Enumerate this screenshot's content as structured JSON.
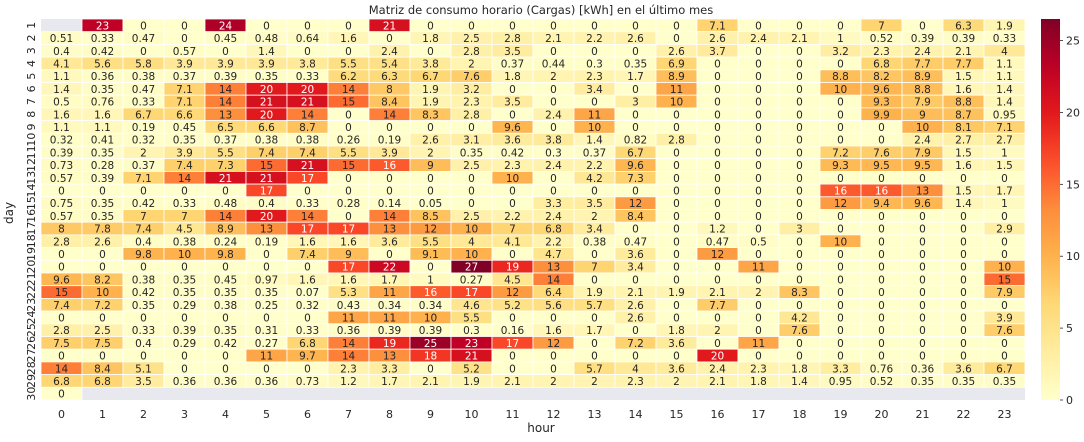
{
  "chart_data": {
    "type": "heatmap",
    "title": "Matriz de consumo horario (Cargas) [kWh] en el último mes",
    "xlabel": "hour",
    "ylabel": "day",
    "x_ticks": [
      "0",
      "1",
      "2",
      "3",
      "4",
      "5",
      "6",
      "7",
      "8",
      "9",
      "10",
      "11",
      "12",
      "13",
      "14",
      "15",
      "16",
      "17",
      "18",
      "19",
      "20",
      "21",
      "22",
      "23"
    ],
    "y_ticks": [
      "1",
      "2",
      "3",
      "4",
      "5",
      "6",
      "7",
      "8",
      "9",
      "10",
      "11",
      "12",
      "13",
      "14",
      "15",
      "16",
      "17",
      "18",
      "19",
      "20",
      "21",
      "22",
      "23",
      "24",
      "25",
      "26",
      "27",
      "28",
      "29",
      "30"
    ],
    "colorbar": {
      "min": 0,
      "max": 26.5,
      "ticks": [
        0,
        5,
        10,
        15,
        20,
        25
      ]
    },
    "missing_color": "#e8e9ef",
    "values": [
      [
        null,
        23,
        0,
        0,
        24,
        0,
        0,
        0,
        21,
        0,
        0,
        0,
        0,
        0,
        0,
        0,
        7.1,
        0,
        0,
        0,
        7,
        0,
        6.3,
        1.9
      ],
      [
        0.51,
        0.33,
        0.47,
        0,
        0.45,
        0.48,
        0.64,
        1.6,
        0,
        1.8,
        2.5,
        2.8,
        2.1,
        2.2,
        2.6,
        0,
        2.6,
        2.4,
        2.1,
        1,
        0.52,
        0.39,
        0.39,
        0.33
      ],
      [
        0.4,
        0.42,
        0,
        0.57,
        0,
        1.4,
        0,
        0,
        2.4,
        0,
        2.8,
        3.5,
        0,
        0,
        0,
        2.6,
        3.7,
        0,
        0,
        3.2,
        2.3,
        2.4,
        2.1,
        4
      ],
      [
        4.1,
        5.6,
        5.8,
        3.9,
        3.9,
        3.9,
        3.8,
        5.5,
        5.4,
        3.8,
        2,
        0.37,
        0.44,
        0.3,
        0.35,
        6.9,
        0,
        0,
        0,
        0,
        6.8,
        7.7,
        7.7,
        1.1
      ],
      [
        1.1,
        0.36,
        0.38,
        0.37,
        0.39,
        0.35,
        0.33,
        6.2,
        6.3,
        6.7,
        7.6,
        1.8,
        2,
        2.3,
        1.7,
        8.9,
        0,
        0,
        0,
        8.8,
        8.2,
        8.9,
        1.5,
        1.1
      ],
      [
        1.4,
        0.35,
        0.47,
        7.1,
        14,
        20,
        20,
        14,
        8,
        1.9,
        3.2,
        0,
        0,
        3.4,
        0,
        11,
        0,
        0,
        0,
        10,
        9.6,
        8.8,
        1.6,
        1.4
      ],
      [
        0.5,
        0.76,
        0.33,
        7.1,
        14,
        21,
        21,
        15,
        8.4,
        1.9,
        2.3,
        3.5,
        0,
        0,
        3,
        10,
        0,
        0,
        0,
        0,
        9.3,
        7.9,
        8.8,
        1.4
      ],
      [
        1.6,
        1.6,
        6.7,
        6.6,
        13,
        20,
        14,
        0,
        14,
        8.3,
        2.8,
        0,
        2.4,
        11,
        0,
        0,
        0,
        0,
        0,
        0,
        9.9,
        9,
        8.7,
        0.95
      ],
      [
        1.1,
        1.1,
        0.19,
        0.45,
        6.5,
        6.6,
        8.7,
        0,
        0,
        0,
        0,
        9.6,
        0,
        10,
        0,
        0,
        0,
        0,
        0,
        0,
        0,
        10,
        8.1,
        7.1
      ],
      [
        0.32,
        0.41,
        0.32,
        0.35,
        0.37,
        0.38,
        0.38,
        0.26,
        0.19,
        2.6,
        3.1,
        3.6,
        3.8,
        1.4,
        0.82,
        2.8,
        0,
        0,
        0,
        0,
        0,
        2.4,
        2.7,
        2.7
      ],
      [
        0.39,
        0.35,
        2,
        3.9,
        5.5,
        7.4,
        7.4,
        5.5,
        3.9,
        2,
        0.35,
        0.42,
        0.3,
        0.37,
        6.7,
        0,
        0,
        0,
        0,
        7.2,
        7.6,
        7.9,
        1.5,
        1
      ],
      [
        0.73,
        0.28,
        0.37,
        7.4,
        7.3,
        15,
        21,
        15,
        16,
        9,
        2.5,
        2.3,
        2.4,
        2.2,
        9.6,
        0,
        0,
        0,
        0,
        9.3,
        9.5,
        9.5,
        1.6,
        1.5
      ],
      [
        0.57,
        0.39,
        7.1,
        14,
        21,
        21,
        17,
        0,
        0,
        0,
        0,
        10,
        0,
        4.2,
        7.3,
        0,
        0,
        0,
        0,
        0,
        0,
        0,
        0,
        0
      ],
      [
        0,
        0,
        0,
        0,
        0,
        17,
        0,
        0,
        0,
        0,
        0,
        0,
        0,
        0,
        0,
        0,
        0,
        0,
        0,
        16,
        16,
        13,
        1.5,
        1.7
      ],
      [
        0.75,
        0.35,
        0.42,
        0.33,
        0.48,
        0.4,
        0.33,
        0.28,
        0.14,
        0.05,
        0,
        0,
        3.3,
        3.5,
        12,
        0,
        0,
        0,
        0,
        12,
        9.4,
        9.6,
        1.4,
        1
      ],
      [
        0.57,
        0.35,
        7,
        7,
        14,
        20,
        14,
        0,
        14,
        8.5,
        2.5,
        2.2,
        2.4,
        2,
        8.4,
        0,
        0,
        0,
        0,
        0,
        0,
        0,
        0,
        0
      ],
      [
        8,
        7.8,
        7.4,
        4.5,
        8.9,
        13,
        17,
        17,
        13,
        12,
        10,
        7,
        6.8,
        3.4,
        0,
        0,
        1.2,
        0,
        3,
        0,
        0,
        0,
        0,
        2.9
      ],
      [
        2.8,
        2.6,
        0.4,
        0.38,
        0.24,
        0.19,
        1.6,
        1.6,
        3.6,
        5.5,
        4,
        4.1,
        2.2,
        0.38,
        0.47,
        0,
        0.47,
        0.5,
        0,
        10,
        0,
        0,
        0,
        0
      ],
      [
        0,
        0,
        9.8,
        10,
        9.8,
        0,
        7.4,
        9,
        0,
        9.1,
        10,
        0,
        4.7,
        0,
        3.6,
        0,
        12,
        0,
        0,
        0,
        0,
        0,
        0,
        0
      ],
      [
        0,
        0,
        0,
        0,
        0,
        0,
        0,
        17,
        22,
        0,
        27,
        19,
        13,
        7,
        3.4,
        0,
        0,
        11,
        0,
        0,
        0,
        0,
        0,
        10
      ],
      [
        9.6,
        8.2,
        0.38,
        0.35,
        0.45,
        0.97,
        1.6,
        1.6,
        1.7,
        1,
        0.27,
        4.5,
        14,
        0,
        0,
        0,
        0,
        0,
        0,
        0,
        0,
        0,
        0,
        15
      ],
      [
        15,
        10,
        0.42,
        0.35,
        0.35,
        0.35,
        0.07,
        5.3,
        11,
        16,
        17,
        12,
        6.4,
        1.9,
        2.1,
        1.9,
        2.1,
        2,
        8.3,
        0,
        0,
        0,
        0,
        7.9
      ],
      [
        7.4,
        7.2,
        0.35,
        0.29,
        0.38,
        0.25,
        0.32,
        0.43,
        0.34,
        0.34,
        4.6,
        5.2,
        5.6,
        5.7,
        2.6,
        0,
        7.7,
        0,
        0,
        0,
        0,
        0,
        0,
        0
      ],
      [
        0,
        0,
        0,
        0,
        0,
        0,
        0,
        11,
        11,
        10,
        5.5,
        0,
        0,
        0,
        2.6,
        0,
        0,
        0,
        4.2,
        0,
        0,
        0,
        0,
        3.9
      ],
      [
        2.8,
        2.5,
        0.33,
        0.39,
        0.35,
        0.31,
        0.33,
        0.36,
        0.39,
        0.39,
        0.3,
        0.16,
        1.6,
        1.7,
        0,
        1.8,
        2,
        0,
        7.6,
        0,
        0,
        0,
        0,
        7.6
      ],
      [
        7.5,
        7.5,
        0.4,
        0.29,
        0.42,
        0.27,
        6.8,
        14,
        19,
        25,
        23,
        17,
        12,
        0,
        7.2,
        3.6,
        0,
        11,
        0,
        0,
        0,
        0,
        0,
        0
      ],
      [
        0,
        0,
        0,
        0,
        0,
        11,
        9.7,
        14,
        13,
        18,
        21,
        0,
        0,
        0,
        0,
        0,
        20,
        0,
        0,
        0,
        0,
        0,
        0,
        0
      ],
      [
        14,
        8.4,
        5.1,
        0,
        0,
        0,
        0,
        2.3,
        3.3,
        0,
        5.2,
        0,
        0,
        5.7,
        4,
        3.6,
        2.4,
        2.3,
        1.8,
        3.3,
        0.76,
        0.36,
        3.6,
        6.7
      ],
      [
        6.8,
        6.8,
        3.5,
        0.36,
        0.36,
        0.36,
        0.73,
        1.2,
        1.7,
        2.1,
        1.9,
        2.1,
        2,
        2,
        2.3,
        2,
        2.1,
        1.8,
        1.4,
        0.95,
        0.52,
        0.35,
        0.35,
        0.35
      ],
      [
        0,
        null,
        null,
        null,
        null,
        null,
        null,
        null,
        null,
        null,
        null,
        null,
        null,
        null,
        null,
        null,
        null,
        null,
        null,
        null,
        null,
        null,
        null,
        null
      ]
    ]
  }
}
